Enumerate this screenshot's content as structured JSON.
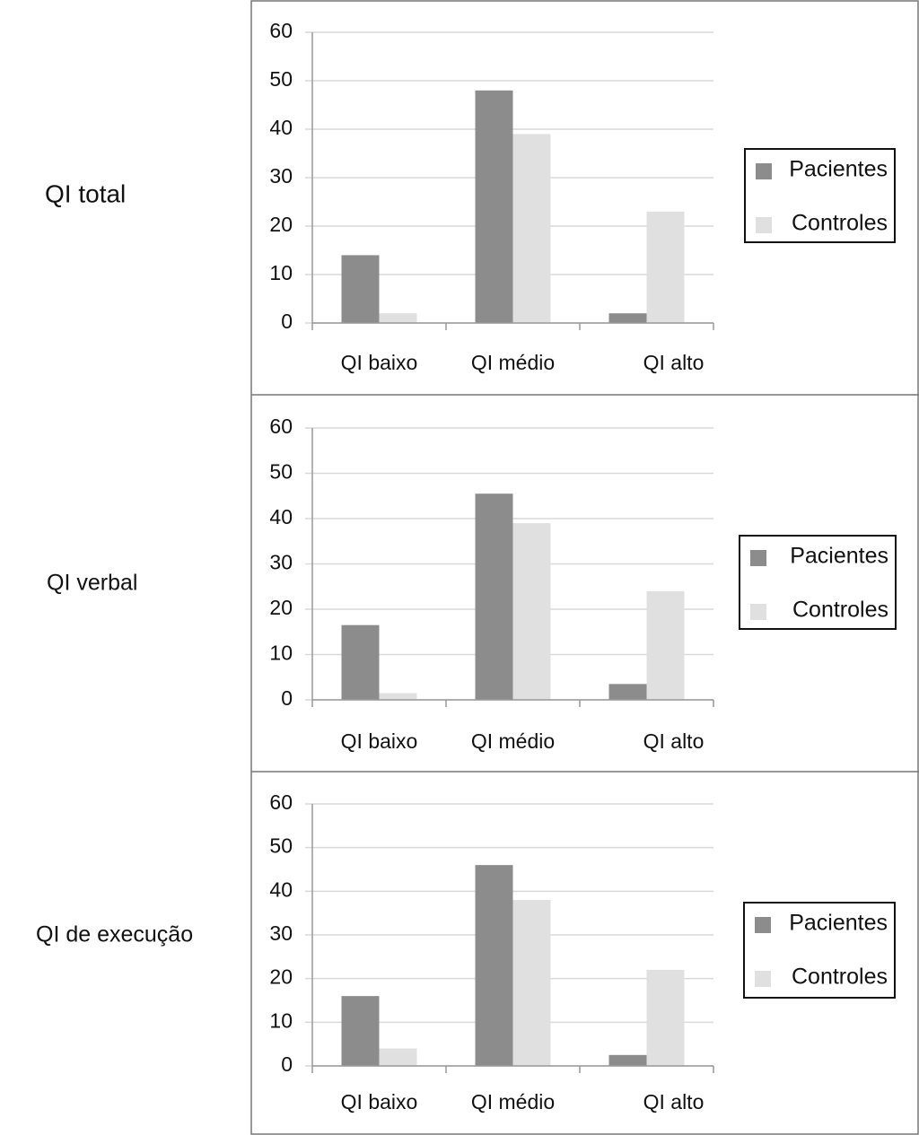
{
  "chart_data": [
    {
      "type": "bar",
      "title": "QI total",
      "categories": [
        "QI baixo",
        "QI médio",
        "QI alto"
      ],
      "series": [
        {
          "name": "Pacientes",
          "color": "#8c8c8c",
          "values": [
            14,
            48,
            2
          ]
        },
        {
          "name": "Controles",
          "color": "#e0e0e0",
          "values": [
            2,
            39,
            23
          ]
        }
      ],
      "ylim": [
        0,
        60
      ],
      "yticks": [
        0,
        10,
        20,
        30,
        40,
        50,
        60
      ],
      "grid": true,
      "legend": "right"
    },
    {
      "type": "bar",
      "title": "QI verbal",
      "categories": [
        "QI baixo",
        "QI médio",
        "QI alto"
      ],
      "series": [
        {
          "name": "Pacientes",
          "color": "#8c8c8c",
          "values": [
            16.5,
            45.5,
            3.5
          ]
        },
        {
          "name": "Controles",
          "color": "#e0e0e0",
          "values": [
            1.5,
            39,
            24
          ]
        }
      ],
      "ylim": [
        0,
        60
      ],
      "yticks": [
        0,
        10,
        20,
        30,
        40,
        50,
        60
      ],
      "grid": true,
      "legend": "right"
    },
    {
      "type": "bar",
      "title": "QI de execução",
      "categories": [
        "QI baixo",
        "QI médio",
        "QI alto"
      ],
      "series": [
        {
          "name": "Pacientes",
          "color": "#8c8c8c",
          "values": [
            16,
            46,
            2.5
          ]
        },
        {
          "name": "Controles",
          "color": "#e0e0e0",
          "values": [
            4,
            38,
            22
          ]
        }
      ],
      "ylim": [
        0,
        60
      ],
      "yticks": [
        0,
        10,
        20,
        30,
        40,
        50,
        60
      ],
      "grid": true,
      "legend": "right"
    }
  ]
}
